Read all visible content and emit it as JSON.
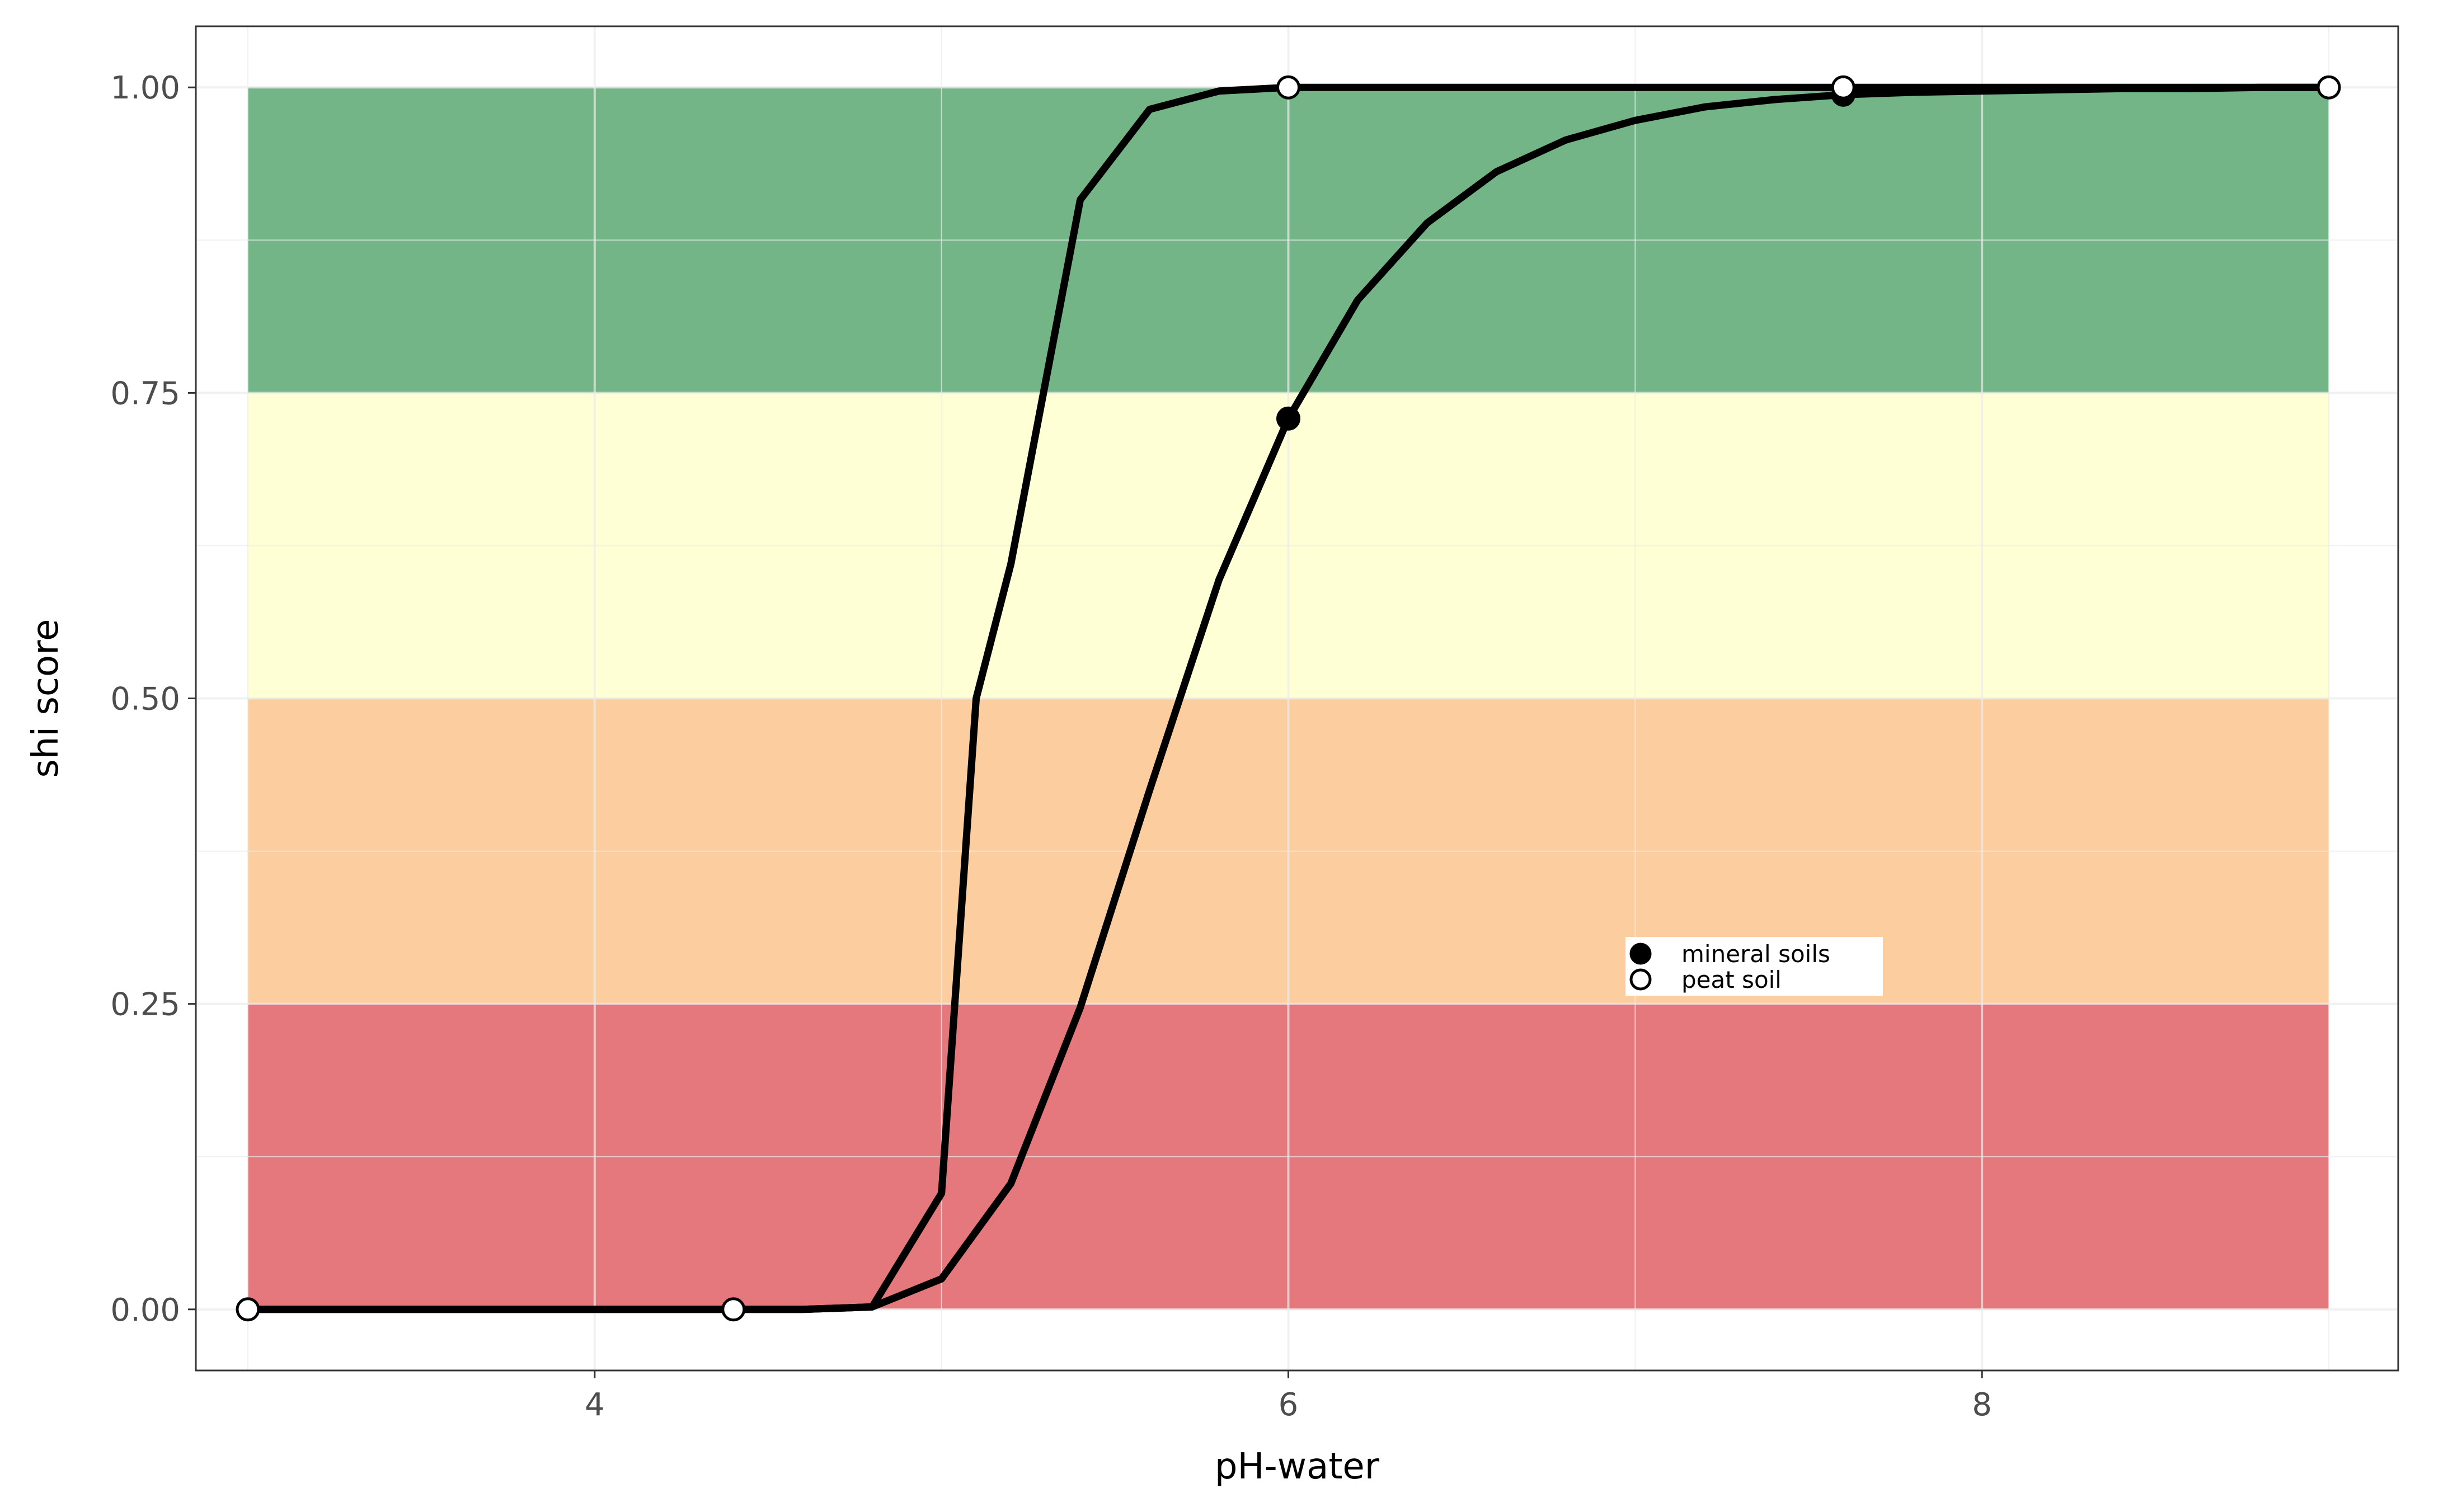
{
  "chart_data": {
    "type": "line",
    "title": "",
    "xlabel": "pH-water",
    "ylabel": "shi score",
    "xlim": [
      2.85,
      9.2
    ],
    "ylim": [
      -0.05,
      1.05
    ],
    "x_ticks": [
      4,
      6,
      8
    ],
    "x_tick_labels": [
      "4",
      "6",
      "8"
    ],
    "y_ticks": [
      0,
      0.25,
      0.5,
      0.75,
      1.0
    ],
    "y_tick_labels": [
      "0.00",
      "0.25",
      "0.50",
      "0.75",
      "1.00"
    ],
    "grid": true,
    "legend_position": "bottom-right",
    "bands": [
      {
        "from": 0.0,
        "to": 0.25,
        "color": "#e06066",
        "xrange": [
          3,
          9
        ]
      },
      {
        "from": 0.25,
        "to": 0.5,
        "color": "#fcc58e",
        "xrange": [
          3,
          9
        ]
      },
      {
        "from": 0.5,
        "to": 0.75,
        "color": "#feffcd",
        "xrange": [
          3,
          9
        ]
      },
      {
        "from": 0.75,
        "to": 1.0,
        "color": "#5aa872",
        "xrange": [
          3,
          9
        ]
      }
    ],
    "series": [
      {
        "name": "mineral soils",
        "marker": "filled",
        "x": [
          3.0,
          3.2,
          3.4,
          3.6,
          3.8,
          4.0,
          4.2,
          4.4,
          4.6,
          4.8,
          5.0,
          5.2,
          5.4,
          5.6,
          5.8,
          6.0,
          6.2,
          6.4,
          6.6,
          6.8,
          7.0,
          7.2,
          7.4,
          7.6,
          7.8,
          8.0,
          8.2,
          8.4,
          8.6,
          8.8,
          9.0
        ],
        "y": [
          0.0,
          0.0,
          0.0,
          0.0,
          0.0,
          0.0,
          0.0,
          0.0,
          0.0,
          0.002,
          0.025,
          0.103,
          0.247,
          0.425,
          0.597,
          0.729,
          0.826,
          0.889,
          0.931,
          0.957,
          0.973,
          0.984,
          0.99,
          0.994,
          0.996,
          0.997,
          0.998,
          0.999,
          0.999,
          1.0,
          1.0
        ],
        "points": [
          {
            "x": 6.0,
            "y": 0.729
          },
          {
            "x": 7.6,
            "y": 0.994
          }
        ]
      },
      {
        "name": "peat soil",
        "marker": "open",
        "x": [
          3.0,
          3.2,
          3.4,
          3.6,
          3.8,
          4.0,
          4.2,
          4.4,
          4.6,
          4.8,
          5.0,
          5.1,
          5.2,
          5.4,
          5.6,
          5.8,
          6.0,
          6.2,
          6.4,
          6.6,
          6.8,
          7.0,
          7.2,
          7.4,
          7.6,
          7.8,
          8.0,
          8.2,
          8.4,
          8.6,
          8.8,
          9.0
        ],
        "y": [
          0.0,
          0.0,
          0.0,
          0.0,
          0.0,
          0.0,
          0.0,
          0.0,
          0.0,
          0.002,
          0.095,
          0.5,
          0.61,
          0.908,
          0.982,
          0.997,
          1.0,
          1.0,
          1.0,
          1.0,
          1.0,
          1.0,
          1.0,
          1.0,
          1.0,
          1.0,
          1.0,
          1.0,
          1.0,
          1.0,
          1.0,
          1.0
        ],
        "points": [
          {
            "x": 3.0,
            "y": 0.0
          },
          {
            "x": 4.4,
            "y": 0.0
          },
          {
            "x": 6.0,
            "y": 1.0
          },
          {
            "x": 7.6,
            "y": 1.0
          },
          {
            "x": 9.0,
            "y": 1.0
          }
        ]
      }
    ],
    "colors": {
      "line": "#000000",
      "grid": "#ebebeb",
      "panel_border": "#333333",
      "filled_marker": "#000000",
      "open_marker_fill": "#ffffff"
    }
  }
}
